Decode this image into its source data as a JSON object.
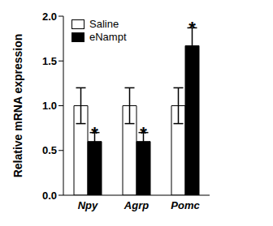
{
  "chart_data": {
    "type": "bar",
    "y_label": "Relative mRNA expression",
    "categories": [
      "Npy",
      "Agrp",
      "Pomc"
    ],
    "series": [
      {
        "name": "Saline",
        "color": "#ffffff",
        "values": [
          1.0,
          1.0,
          1.0
        ],
        "errors": [
          0.2,
          0.2,
          0.2
        ]
      },
      {
        "name": "eNampt",
        "color": "#000000",
        "values": [
          0.6,
          0.6,
          1.67
        ],
        "errors": [
          0.1,
          0.1,
          0.2
        ]
      }
    ],
    "annotations": [
      {
        "category": "Npy",
        "series": "eNampt",
        "text": "*"
      },
      {
        "category": "Agrp",
        "series": "eNampt",
        "text": "*"
      },
      {
        "category": "Pomc",
        "series": "eNampt",
        "text": "*"
      }
    ],
    "ylim": [
      0,
      2
    ],
    "yticks": [
      {
        "value": 0,
        "label": "0.0"
      },
      0.5,
      {
        "value": 1,
        "label": "1.0"
      },
      1.5,
      {
        "value": 2,
        "label": "2.0"
      }
    ],
    "grid": false,
    "legend": "upper left"
  }
}
